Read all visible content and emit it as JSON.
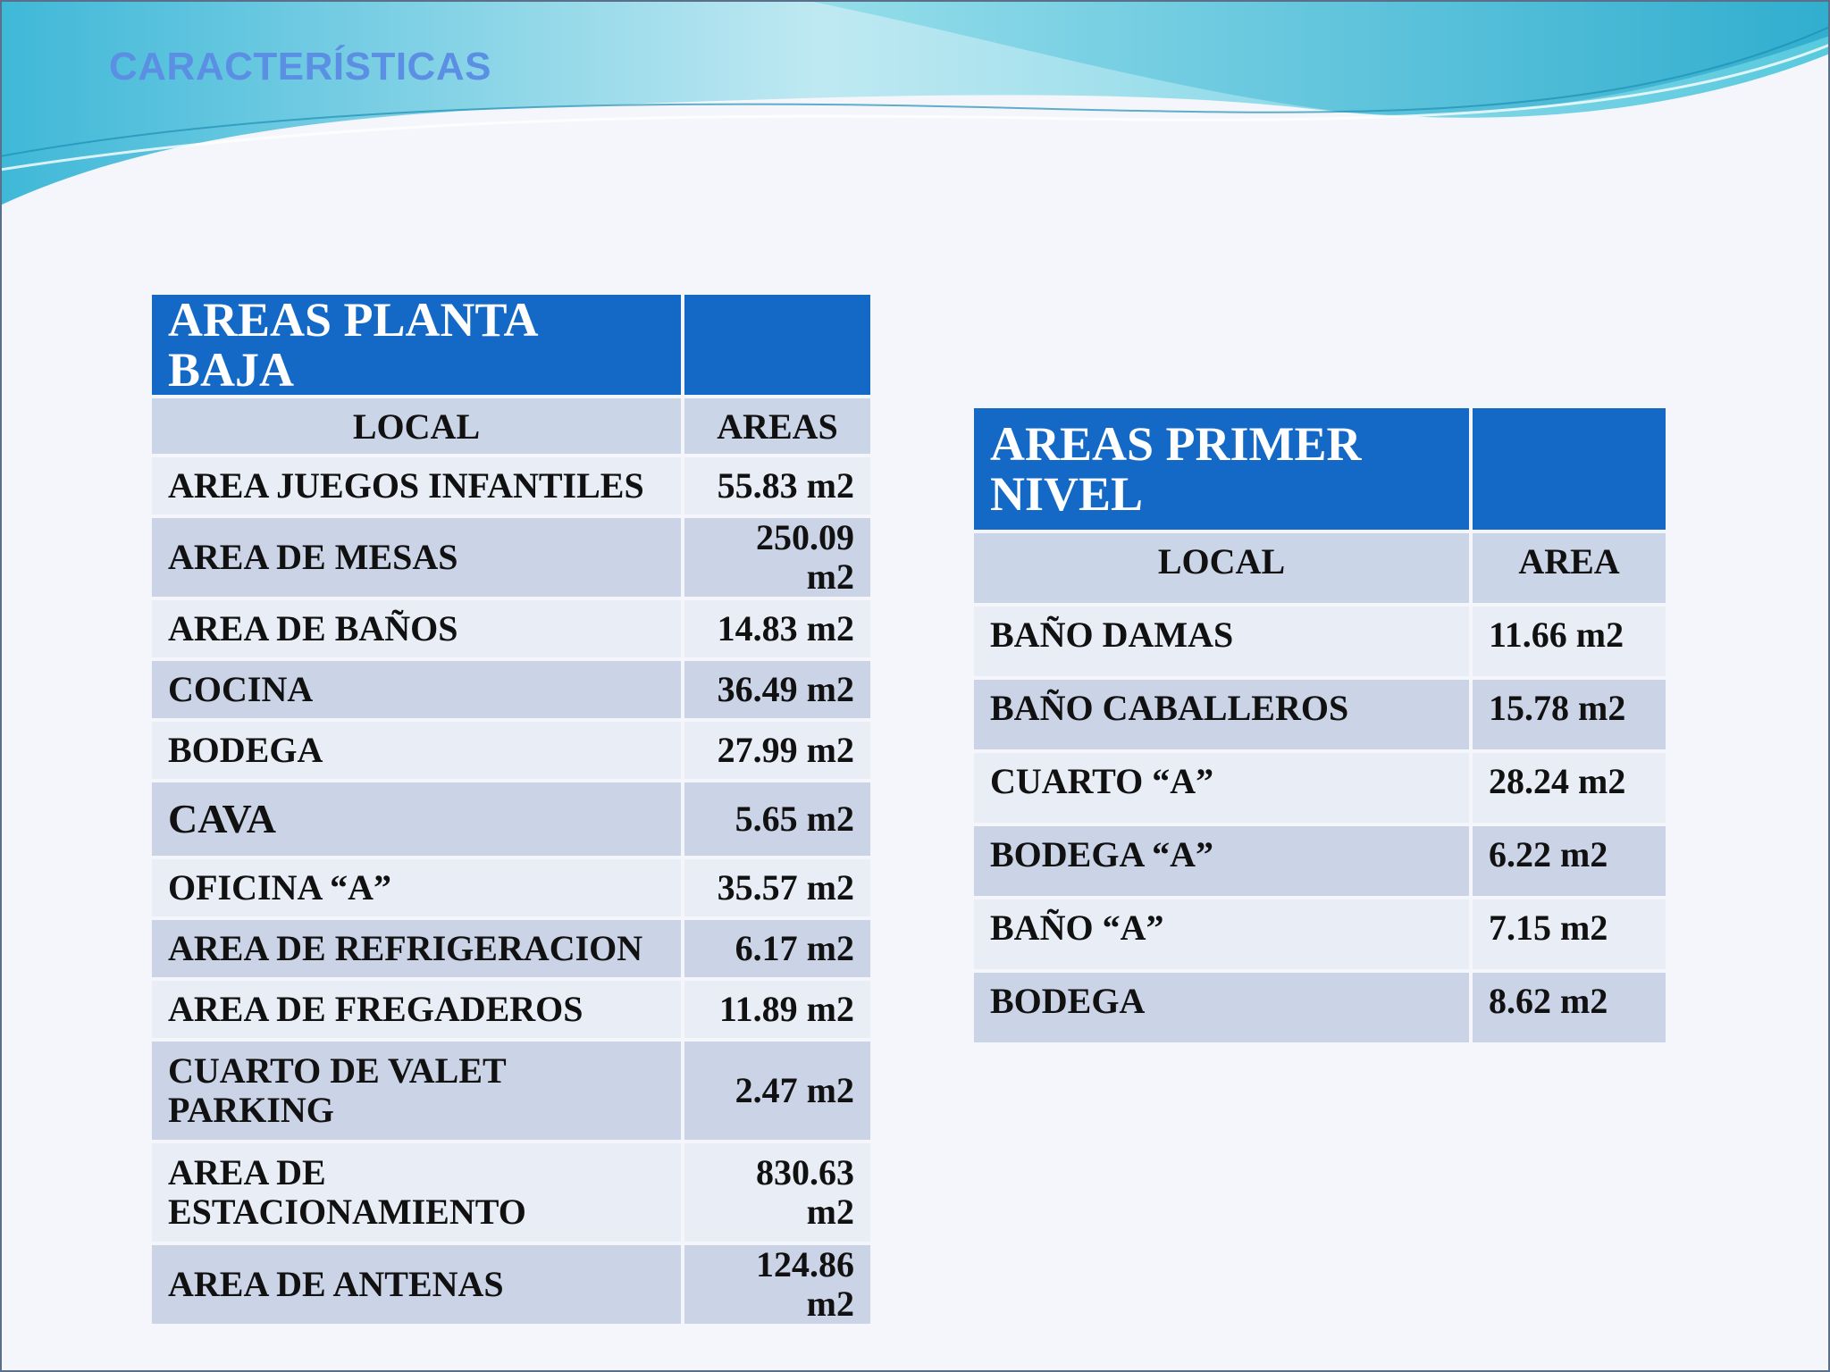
{
  "slide": {
    "title": "CARACTERÍSTICAS",
    "colors": {
      "title": "#5b8fe3",
      "table_header": "#1469c7",
      "row_dark": "#cbd3e6",
      "row_light": "#e8edf6",
      "wave": "#5fd0e0"
    }
  },
  "planta_baja": {
    "title": "AREAS PLANTA BAJA",
    "columns": [
      "LOCAL",
      "AREAS"
    ],
    "rows": [
      {
        "local": "AREA JUEGOS INFANTILES",
        "area": "55.83 m2"
      },
      {
        "local": "AREA DE MESAS",
        "area": "250.09 m2"
      },
      {
        "local": "AREA DE BAÑOS",
        "area": "14.83 m2"
      },
      {
        "local": "COCINA",
        "area": "36.49 m2"
      },
      {
        "local": "BODEGA",
        "area": "27.99 m2"
      },
      {
        "local": "CAVA",
        "area": "5.65 m2"
      },
      {
        "local": "OFICINA “A”",
        "area": "35.57 m2"
      },
      {
        "local": "AREA DE REFRIGERACION",
        "area": "6.17 m2"
      },
      {
        "local": "AREA DE FREGADEROS",
        "area": "11.89 m2"
      },
      {
        "local": "CUARTO DE VALET PARKING",
        "area": "2.47 m2"
      },
      {
        "local": "AREA DE ESTACIONAMIENTO",
        "area": "830.63 m2"
      },
      {
        "local": "AREA DE ANTENAS",
        "area": "124.86 m2"
      }
    ]
  },
  "primer_nivel": {
    "title": "AREAS PRIMER NIVEL",
    "columns": [
      "LOCAL",
      "AREA"
    ],
    "rows": [
      {
        "local": "BAÑO DAMAS",
        "area": "11.66 m2"
      },
      {
        "local": "BAÑO CABALLEROS",
        "area": "15.78 m2"
      },
      {
        "local": "CUARTO “A”",
        "area": "28.24 m2"
      },
      {
        "local": "BODEGA “A”",
        "area": "6.22 m2"
      },
      {
        "local": "BAÑO “A”",
        "area": "7.15 m2"
      },
      {
        "local": "BODEGA",
        "area": "8.62 m2"
      }
    ]
  }
}
